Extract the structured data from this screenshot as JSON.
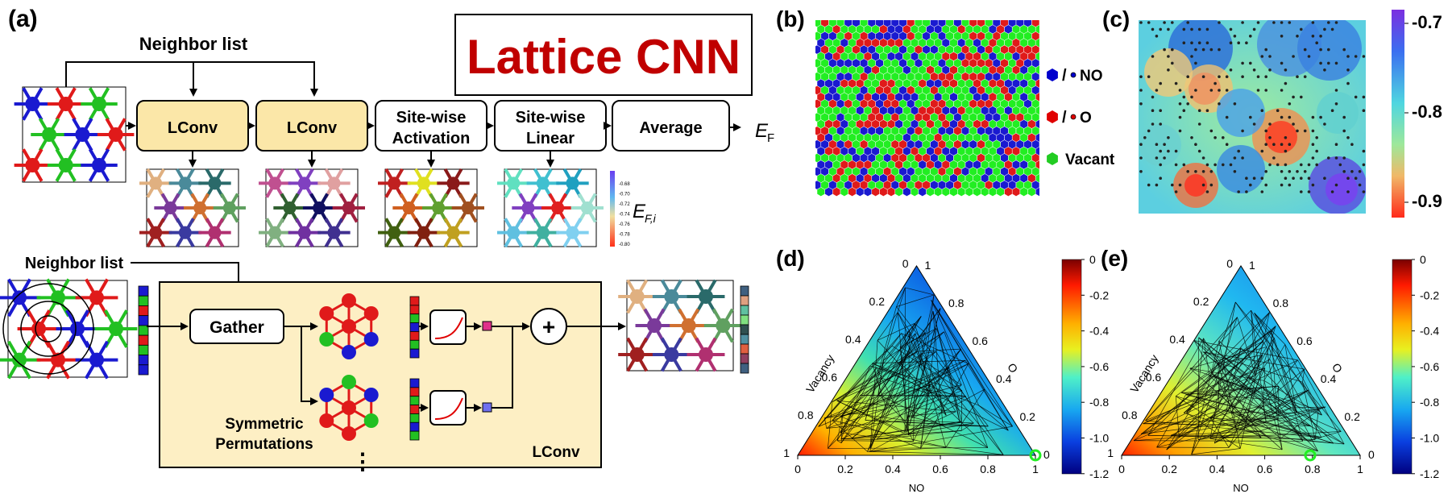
{
  "panel_a": {
    "label": "(a)",
    "title": "Lattice CNN",
    "neighbor_list_top": "Neighbor list",
    "neighbor_list_mid": "Neighbor list",
    "boxes": [
      {
        "line1": "LConv",
        "line2": ""
      },
      {
        "line1": "LConv",
        "line2": ""
      },
      {
        "line1": "Site-wise",
        "line2": "Activation"
      },
      {
        "line1": "Site-wise",
        "line2": "Linear"
      },
      {
        "line1": "Average",
        "line2": ""
      }
    ],
    "output_label": "E",
    "output_sub": "F",
    "site_label": "E",
    "site_sub": "F,i",
    "mini_colorbar_ticks": [
      "-0.68",
      "-0.70",
      "-0.72",
      "-0.74",
      "-0.76",
      "-0.78",
      "-0.80"
    ],
    "gather": "Gather",
    "plus": "+",
    "sym_line1": "Symmetric",
    "sym_line2": "Permutations",
    "lconv_label": "LConv",
    "ellipsis": "⋮",
    "colors": {
      "box_fill": "#fbe7a8",
      "lconv_panel": "#fdefc4",
      "title_red": "#c00000"
    }
  },
  "panel_b": {
    "label": "(b)",
    "legend": [
      {
        "text": "NO",
        "prefix": "/",
        "color": "#0000cc"
      },
      {
        "text": "O",
        "prefix": "/",
        "color": "#e00000"
      },
      {
        "text": "Vacant",
        "prefix": "",
        "color": "#22cc22"
      }
    ]
  },
  "panel_c": {
    "label": "(c)",
    "colorbar_ticks": [
      "-0.7",
      "-0.8",
      "-0.9"
    ]
  },
  "panel_d": {
    "label": "(d)",
    "axis_bottom": "NO",
    "axis_left": "Vacancy",
    "axis_right": "O",
    "bottom_ticks": [
      "0",
      "0.2",
      "0.4",
      "0.6",
      "0.8",
      "1"
    ],
    "left_ticks": [
      "1",
      "0.8",
      "0.6",
      "0.4",
      "0.2",
      "0"
    ],
    "right_ticks": [
      "1",
      "0.8",
      "0.6",
      "0.4",
      "0.2",
      "0"
    ],
    "colorbar_ticks": [
      "0",
      "-0.2",
      "-0.4",
      "-0.6",
      "-0.8",
      "-1.0",
      "-1.2"
    ]
  },
  "panel_e": {
    "label": "(e)",
    "axis_bottom": "NO",
    "axis_left": "Vacancy",
    "axis_right": "O",
    "bottom_ticks": [
      "0",
      "0.2",
      "0.4",
      "0.6",
      "0.8",
      "1"
    ],
    "left_ticks": [
      "1",
      "0.8",
      "0.6",
      "0.4",
      "0.2",
      "0"
    ],
    "right_ticks": [
      "1",
      "0.8",
      "0.6",
      "0.4",
      "0.2",
      "0"
    ],
    "colorbar_ticks": [
      "0",
      "-0.2",
      "-0.4",
      "-0.6",
      "-0.8",
      "-1.0",
      "-1.2"
    ]
  }
}
